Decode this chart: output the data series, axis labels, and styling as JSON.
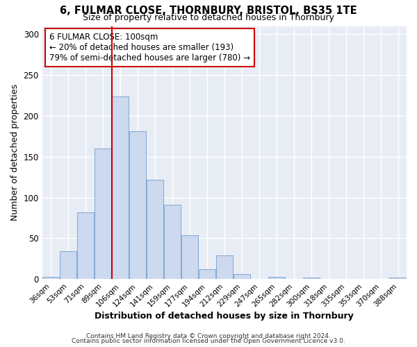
{
  "title": "6, FULMAR CLOSE, THORNBURY, BRISTOL, BS35 1TE",
  "subtitle": "Size of property relative to detached houses in Thornbury",
  "xlabel": "Distribution of detached houses by size in Thornbury",
  "ylabel": "Number of detached properties",
  "bar_labels": [
    "36sqm",
    "53sqm",
    "71sqm",
    "89sqm",
    "106sqm",
    "124sqm",
    "141sqm",
    "159sqm",
    "177sqm",
    "194sqm",
    "212sqm",
    "229sqm",
    "247sqm",
    "265sqm",
    "282sqm",
    "300sqm",
    "318sqm",
    "335sqm",
    "353sqm",
    "370sqm",
    "388sqm"
  ],
  "bar_values": [
    3,
    34,
    82,
    160,
    224,
    181,
    122,
    91,
    54,
    12,
    29,
    6,
    0,
    3,
    0,
    2,
    0,
    0,
    0,
    0,
    2
  ],
  "bar_color": "#ccd9ee",
  "bar_edge_color": "#7fa8d5",
  "ylim": [
    0,
    310
  ],
  "yticks": [
    0,
    50,
    100,
    150,
    200,
    250,
    300
  ],
  "red_line_x": 4,
  "red_line_color": "#cc0000",
  "annotation_text": "6 FULMAR CLOSE: 100sqm\n← 20% of detached houses are smaller (193)\n79% of semi-detached houses are larger (780) →",
  "annotation_box_color": "#ffffff",
  "annotation_box_edge": "#cc0000",
  "footer_line1": "Contains HM Land Registry data © Crown copyright and database right 2024.",
  "footer_line2": "Contains public sector information licensed under the Open Government Licence v3.0.",
  "bg_color": "#ffffff",
  "plot_bg_color": "#e8edf5"
}
